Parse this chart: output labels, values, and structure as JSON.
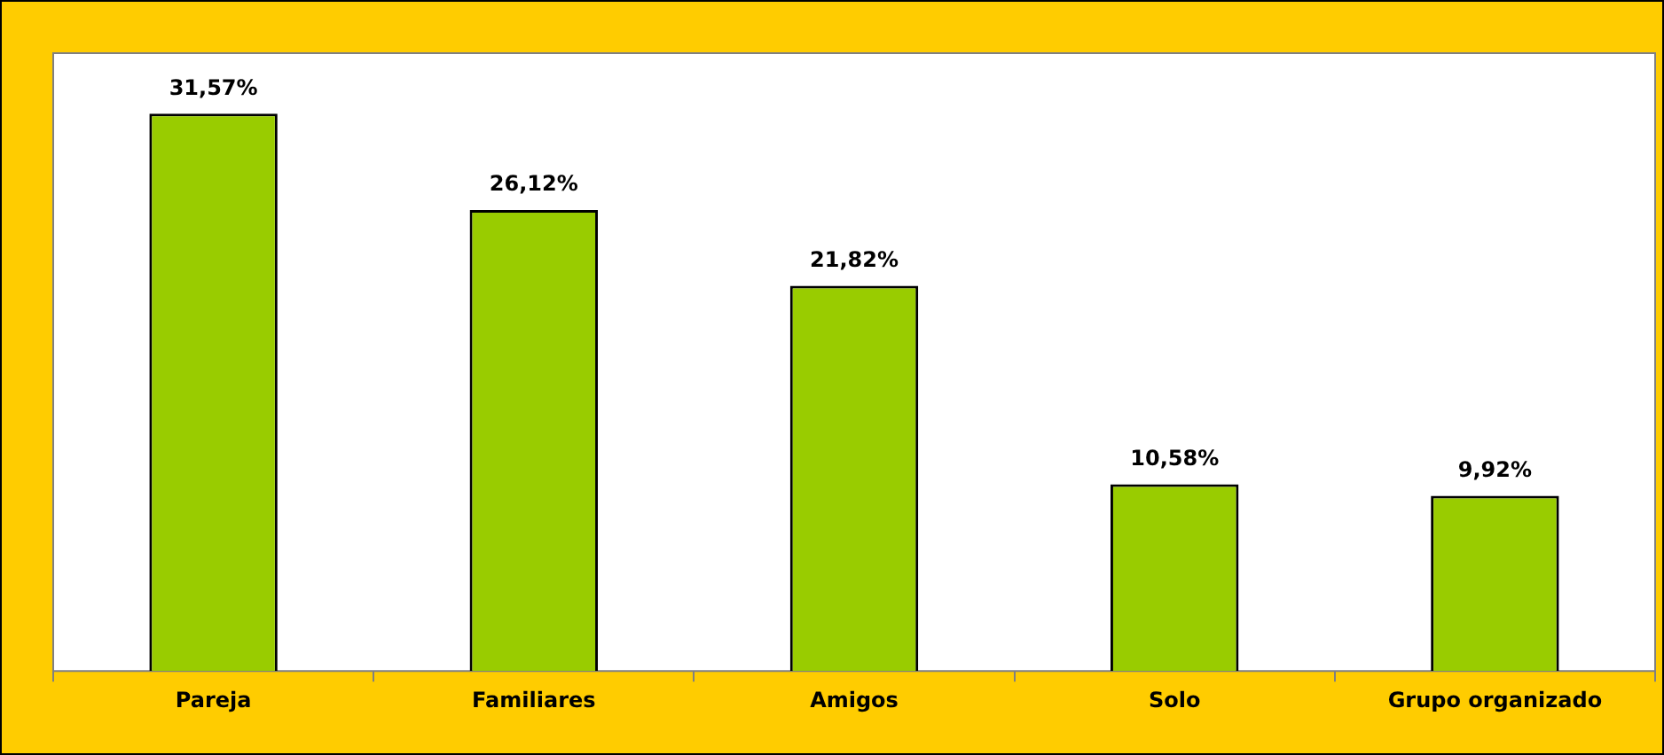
{
  "chart_data": {
    "type": "bar",
    "categories": [
      "Pareja",
      "Familiares",
      "Amigos",
      "Solo",
      "Grupo organizado"
    ],
    "values": [
      31.57,
      26.12,
      21.82,
      10.58,
      9.92
    ],
    "value_labels": [
      "31,57%",
      "26,12%",
      "21,82%",
      "10,58%",
      "9,92%"
    ],
    "color": "#99cc00",
    "ylim": [
      0,
      35
    ],
    "tick_labels": "x",
    "legend": false,
    "grid": false
  }
}
